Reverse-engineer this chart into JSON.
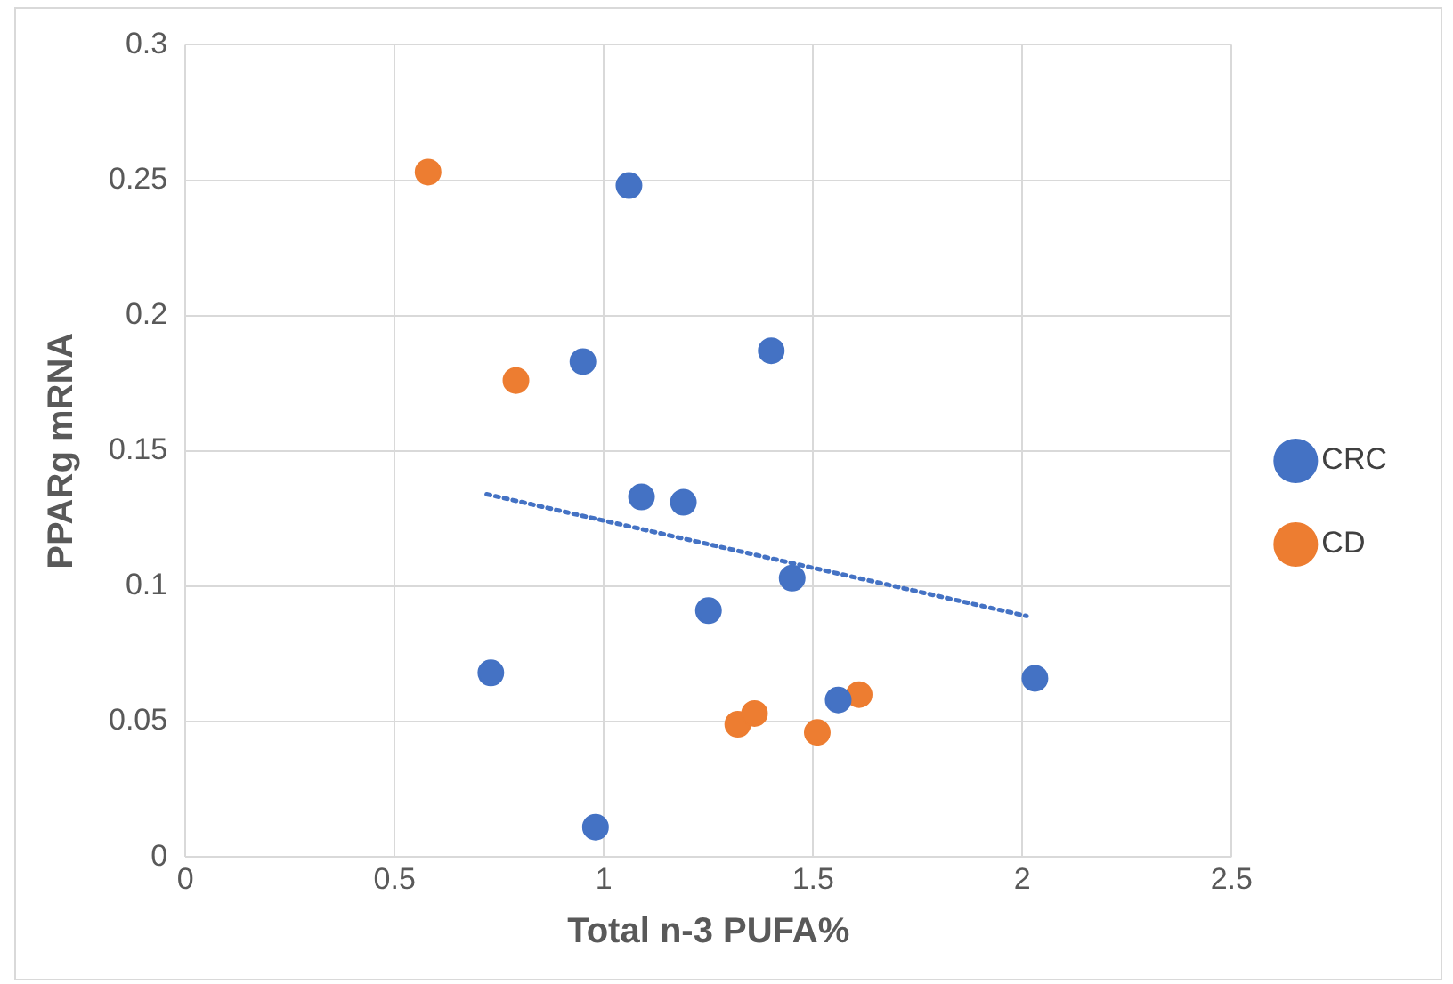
{
  "chart_data": {
    "type": "scatter",
    "xlabel": "Total n-3 PUFA%",
    "ylabel": "PPARg mRNA",
    "xlim": [
      0,
      2.5
    ],
    "xticks": [
      0,
      0.5,
      1,
      1.5,
      2,
      2.5
    ],
    "ylim": [
      0,
      0.3
    ],
    "yticks": [
      0,
      0.05,
      0.1,
      0.15,
      0.2,
      0.25,
      0.3
    ],
    "grid": true,
    "legend": "right",
    "marker": "circle",
    "series": [
      {
        "name": "CRC",
        "color": "#4472c4",
        "x": [
          1.06,
          0.95,
          1.4,
          1.09,
          1.19,
          1.45,
          1.25,
          0.73,
          1.56,
          2.03,
          0.98
        ],
        "values": [
          0.248,
          0.183,
          0.187,
          0.133,
          0.131,
          0.103,
          0.091,
          0.068,
          0.058,
          0.066,
          0.011
        ]
      },
      {
        "name": "CD",
        "color": "#ed7d31",
        "x": [
          0.58,
          0.79,
          1.32,
          1.36,
          1.51,
          1.61
        ],
        "values": [
          0.253,
          0.176,
          0.049,
          0.053,
          0.046,
          0.06
        ]
      },
      {
        "type": "line",
        "color": "#4472c4",
        "line_style": "dotted",
        "marker": "none",
        "x": [
          0.72,
          2.01
        ],
        "values": [
          0.134,
          0.089
        ]
      }
    ]
  }
}
